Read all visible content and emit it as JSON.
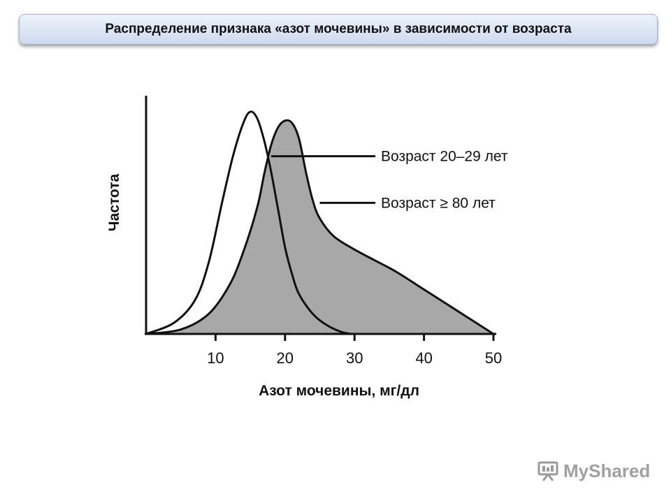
{
  "header": {
    "title": "Распределение признака «азот мочевины» в зависимости от возраста"
  },
  "chart_data": {
    "type": "area",
    "xlabel": "Азот мочевины, мг/дл",
    "ylabel": "Частота",
    "xticks": [
      "10",
      "20",
      "30",
      "40",
      "50"
    ],
    "xlim": [
      0,
      50
    ],
    "ylim": [
      0,
      1
    ],
    "grid": false,
    "series": [
      {
        "name": "Возраст 20–29 лет",
        "fill": "none",
        "stroke": "#111111",
        "x": [
          0,
          4,
          7,
          9,
          11,
          12.5,
          14,
          15,
          16,
          17,
          18,
          19,
          20,
          21,
          22,
          24,
          26,
          28,
          29.5
        ],
        "y": [
          0.0,
          0.05,
          0.15,
          0.32,
          0.6,
          0.8,
          0.95,
          1.0,
          0.97,
          0.87,
          0.73,
          0.56,
          0.39,
          0.27,
          0.18,
          0.09,
          0.04,
          0.01,
          0.0
        ]
      },
      {
        "name": "Возраст ≥ 80 лет",
        "fill": "#a8a8a8",
        "stroke": "#111111",
        "x": [
          0,
          5,
          9,
          12,
          14,
          16,
          17,
          18,
          19,
          20,
          21,
          22,
          23,
          24,
          25,
          27,
          30,
          33,
          36,
          40,
          44,
          47,
          50
        ],
        "y": [
          0.0,
          0.02,
          0.09,
          0.22,
          0.37,
          0.57,
          0.72,
          0.85,
          0.93,
          0.96,
          0.95,
          0.88,
          0.73,
          0.6,
          0.52,
          0.44,
          0.38,
          0.33,
          0.28,
          0.2,
          0.12,
          0.06,
          0.0
        ]
      }
    ],
    "annotations": [
      {
        "text": "Возраст 20–29 лет",
        "series": 0,
        "x": 18,
        "y": 0.8
      },
      {
        "text": "Возраст ≥ 80 лет",
        "series": 1,
        "x": 25,
        "y": 0.59
      }
    ]
  },
  "watermark": {
    "text": "MyShared",
    "icon": "presentation-stand-icon"
  }
}
